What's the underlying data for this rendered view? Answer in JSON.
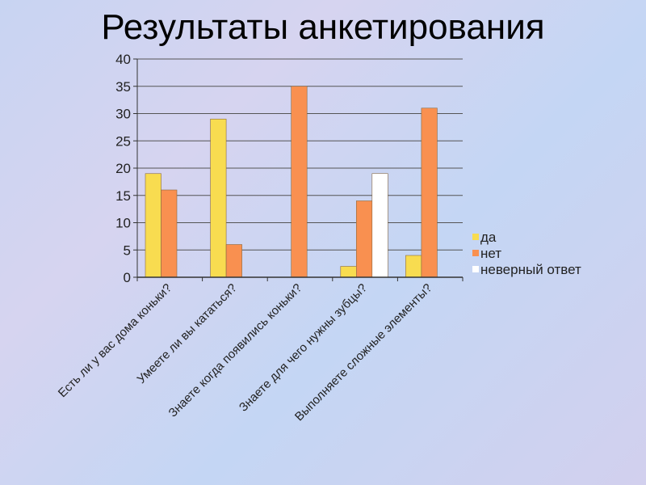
{
  "title": "Результаты анкетирования",
  "chart_data": {
    "type": "bar",
    "title": "Результаты анкетирования",
    "categories": [
      "Есть ли у вас дома коньки?",
      "Умеете ли вы кататься?",
      "Знаете когда появились коньки?",
      "Знаете  для чего нужны зубцы?",
      "Выполняете сложные элементы?"
    ],
    "series": [
      {
        "name": "да",
        "color": "#f8dc50",
        "values": [
          19,
          29,
          0,
          2,
          4
        ]
      },
      {
        "name": "нет",
        "color": "#f99050",
        "values": [
          16,
          6,
          35,
          14,
          31
        ]
      },
      {
        "name": "неверный ответ",
        "color": "#ffffff",
        "values": [
          null,
          null,
          null,
          19,
          null
        ]
      }
    ],
    "ylim": [
      0,
      40
    ],
    "yticks": [
      0,
      5,
      10,
      15,
      20,
      25,
      30,
      35,
      40
    ],
    "grid": true,
    "legend": "right"
  }
}
